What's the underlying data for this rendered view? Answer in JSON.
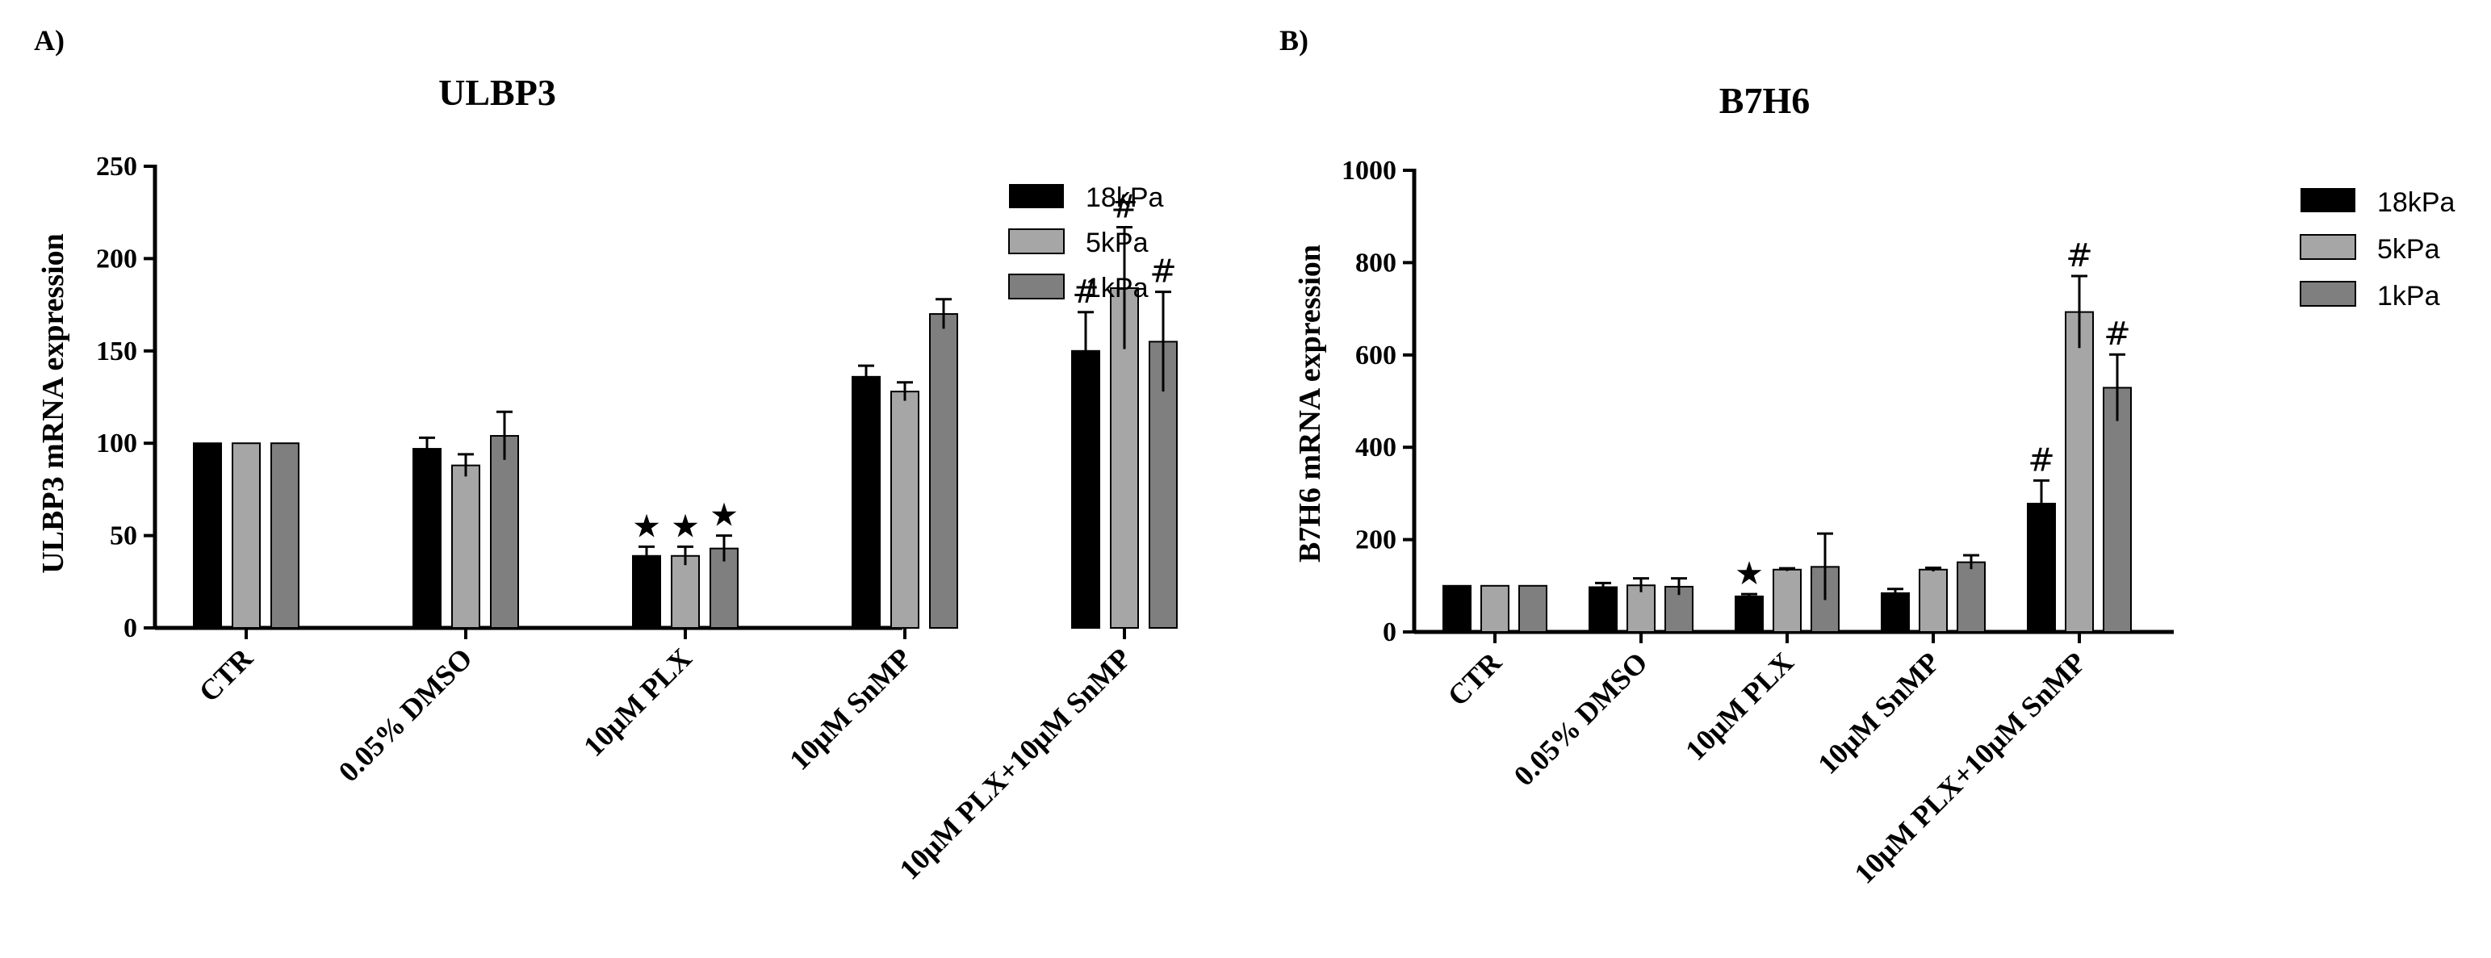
{
  "chart_data": [
    {
      "type": "bar",
      "panel": "A)",
      "title": "ULBP3",
      "xlabel": "",
      "ylabel": "ULBP3 mRNA expression",
      "ylim": [
        0,
        250
      ],
      "yticks": [
        0,
        50,
        100,
        150,
        200,
        250
      ],
      "categories": [
        "CTR",
        "0.05% DMSO",
        "10μM PLX",
        "10μM SnMP",
        "10μM PLX+10μM SnMP"
      ],
      "series": [
        {
          "name": "18kPa",
          "color": "#000000",
          "values": [
            100,
            97,
            39,
            136,
            150
          ],
          "errors": [
            0,
            6,
            5,
            6,
            21
          ],
          "markers": [
            "",
            "",
            "★",
            "",
            "#"
          ]
        },
        {
          "name": "5kPa",
          "color": "#a6a6a6",
          "values": [
            100,
            88,
            39,
            128,
            184
          ],
          "errors": [
            0,
            6,
            5,
            5,
            33
          ],
          "markers": [
            "",
            "",
            "★",
            "",
            "#"
          ]
        },
        {
          "name": "1kPa",
          "color": "#7f7f7f",
          "values": [
            100,
            104,
            43,
            170,
            155
          ],
          "errors": [
            0,
            13,
            7,
            8,
            27
          ],
          "markers": [
            "",
            "",
            "★",
            "",
            "#"
          ]
        }
      ],
      "legend_position": "top-right"
    },
    {
      "type": "bar",
      "panel": "B)",
      "title": "B7H6",
      "xlabel": "",
      "ylabel": "B7H6 mRNA expression",
      "ylim": [
        0,
        1000
      ],
      "yticks": [
        0,
        200,
        400,
        600,
        800,
        1000
      ],
      "categories": [
        "CTR",
        "0.05% DMSO",
        "10μM PLX",
        "10μM SnMP",
        "10μM PLX+10μM SnMP"
      ],
      "series": [
        {
          "name": "18kPa",
          "color": "#000000",
          "values": [
            100,
            97,
            77,
            84,
            278
          ],
          "errors": [
            0,
            9,
            5,
            9,
            50
          ],
          "markers": [
            "",
            "",
            "★",
            "",
            "#"
          ]
        },
        {
          "name": "5kPa",
          "color": "#a6a6a6",
          "values": [
            100,
            101,
            135,
            135,
            693
          ],
          "errors": [
            0,
            15,
            3,
            4,
            78
          ],
          "markers": [
            "",
            "",
            "",
            "",
            "#"
          ]
        },
        {
          "name": "1kPa",
          "color": "#7f7f7f",
          "values": [
            100,
            98,
            141,
            151,
            529
          ],
          "errors": [
            0,
            18,
            72,
            15,
            72
          ],
          "markers": [
            "",
            "",
            "",
            "",
            "#"
          ]
        }
      ],
      "legend_position": "top-right"
    }
  ]
}
